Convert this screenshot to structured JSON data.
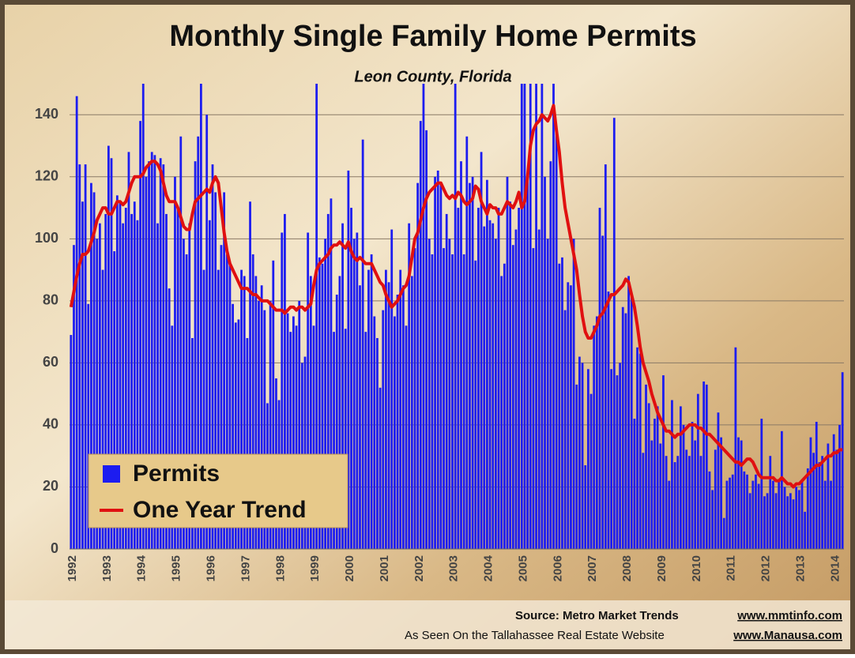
{
  "chart_data": {
    "type": "bar",
    "title": "Monthly Single Family Home Permits",
    "subtitle": "Leon County, Florida",
    "categories": [
      "1992",
      null,
      null,
      null,
      null,
      null,
      null,
      null,
      null,
      null,
      null,
      null,
      "1993",
      null,
      null,
      null,
      null,
      null,
      null,
      null,
      null,
      null,
      null,
      null,
      "1994",
      null,
      null,
      null,
      null,
      null,
      null,
      null,
      null,
      null,
      null,
      null,
      "1995",
      null,
      null,
      null,
      null,
      null,
      null,
      null,
      null,
      null,
      null,
      null,
      "1996",
      null,
      null,
      null,
      null,
      null,
      null,
      null,
      null,
      null,
      null,
      null,
      "1997",
      null,
      null,
      null,
      null,
      null,
      null,
      null,
      null,
      null,
      null,
      null,
      "1998",
      null,
      null,
      null,
      null,
      null,
      null,
      null,
      null,
      null,
      null,
      null,
      "1999",
      null,
      null,
      null,
      null,
      null,
      null,
      null,
      null,
      null,
      null,
      null,
      "2000",
      null,
      null,
      null,
      null,
      null,
      null,
      null,
      null,
      null,
      null,
      null,
      "2001",
      null,
      null,
      null,
      null,
      null,
      null,
      null,
      null,
      null,
      null,
      null,
      "2002",
      null,
      null,
      null,
      null,
      null,
      null,
      null,
      null,
      null,
      null,
      null,
      "2003",
      null,
      null,
      null,
      null,
      null,
      null,
      null,
      null,
      null,
      null,
      null,
      "2004",
      null,
      null,
      null,
      null,
      null,
      null,
      null,
      null,
      null,
      null,
      null,
      "2005",
      null,
      null,
      null,
      null,
      null,
      null,
      null,
      null,
      null,
      null,
      null,
      "2006",
      null,
      null,
      null,
      null,
      null,
      null,
      null,
      null,
      null,
      null,
      null,
      "2007",
      null,
      null,
      null,
      null,
      null,
      null,
      null,
      null,
      null,
      null,
      null,
      "2008",
      null,
      null,
      null,
      null,
      null,
      null,
      null,
      null,
      null,
      null,
      null,
      "2009",
      null,
      null,
      null,
      null,
      null,
      null,
      null,
      null,
      null,
      null,
      null,
      "2010",
      null,
      null,
      null,
      null,
      null,
      null,
      null,
      null,
      null,
      null,
      null,
      "2011",
      null,
      null,
      null,
      null,
      null,
      null,
      null,
      null,
      null,
      null,
      null,
      "2012",
      null,
      null,
      null,
      null,
      null,
      null,
      null,
      null,
      null,
      null,
      null,
      "2013",
      null,
      null,
      null,
      null,
      null,
      null,
      null,
      null,
      null,
      null,
      null,
      "2014",
      null,
      null,
      null
    ],
    "series": [
      {
        "name": "Permits",
        "type": "bar",
        "color": "#1c1cf0",
        "values": [
          69,
          98,
          146,
          124,
          112,
          124,
          79,
          118,
          115,
          100,
          105,
          90,
          108,
          130,
          126,
          96,
          114,
          112,
          105,
          110,
          128,
          108,
          112,
          106,
          138,
          150,
          120,
          125,
          128,
          127,
          105,
          126,
          124,
          108,
          84,
          72,
          120,
          110,
          133,
          100,
          95,
          105,
          68,
          125,
          133,
          150,
          90,
          140,
          106,
          124,
          115,
          90,
          98,
          115,
          95,
          92,
          79,
          73,
          74,
          90,
          88,
          68,
          112,
          95,
          88,
          80,
          85,
          77,
          47,
          80,
          93,
          55,
          48,
          102,
          108,
          76,
          70,
          75,
          72,
          80,
          60,
          62,
          102,
          88,
          72,
          150,
          94,
          92,
          100,
          108,
          113,
          70,
          82,
          88,
          105,
          71,
          122,
          110,
          100,
          102,
          85,
          132,
          70,
          90,
          95,
          75,
          68,
          52,
          77,
          90,
          86,
          103,
          75,
          82,
          90,
          85,
          72,
          105,
          88,
          97,
          118,
          138,
          150,
          135,
          100,
          95,
          120,
          122,
          118,
          97,
          108,
          100,
          95,
          150,
          110,
          125,
          95,
          133,
          118,
          120,
          93,
          110,
          128,
          104,
          119,
          106,
          105,
          100,
          110,
          88,
          92,
          120,
          112,
          98,
          103,
          110,
          150,
          150,
          120,
          150,
          97,
          150,
          103,
          150,
          120,
          100,
          125,
          150,
          134,
          92,
          94,
          77,
          86,
          85,
          100,
          53,
          62,
          60,
          27,
          58,
          50,
          72,
          75,
          110,
          101,
          124,
          83,
          58,
          139,
          56,
          60,
          78,
          76,
          88,
          82,
          42,
          65,
          63,
          31,
          53,
          47,
          35,
          42,
          46,
          34,
          56,
          30,
          22,
          48,
          28,
          30,
          46,
          40,
          32,
          30,
          41,
          35,
          50,
          30,
          54,
          53,
          25,
          19,
          32,
          44,
          36,
          10,
          22,
          23,
          24,
          65,
          36,
          35,
          25,
          24,
          18,
          22,
          24,
          21,
          42,
          17,
          18,
          30,
          22,
          18,
          22,
          38,
          20,
          17,
          18,
          16,
          20,
          19,
          22,
          12,
          26,
          36,
          31,
          41,
          28,
          30,
          22,
          34,
          22,
          37,
          32,
          40,
          57
        ]
      },
      {
        "name": "One Year Trend",
        "type": "line",
        "color": "#e01010",
        "values": [
          78,
          83,
          88,
          92,
          95,
          95,
          96,
          99,
          102,
          106,
          108,
          110,
          110,
          108,
          108,
          110,
          112,
          112,
          111,
          112,
          115,
          118,
          120,
          120,
          120,
          121,
          123,
          124,
          125,
          125,
          124,
          122,
          118,
          114,
          112,
          112,
          112,
          110,
          107,
          104,
          103,
          103,
          108,
          112,
          113,
          114,
          115,
          116,
          115,
          118,
          120,
          118,
          110,
          102,
          96,
          92,
          90,
          88,
          86,
          84,
          84,
          84,
          83,
          82,
          82,
          81,
          80,
          80,
          80,
          79,
          78,
          77,
          77,
          77,
          76,
          77,
          78,
          78,
          77,
          78,
          78,
          77,
          78,
          79,
          85,
          90,
          92,
          93,
          94,
          95,
          97,
          98,
          98,
          99,
          98,
          97,
          99,
          96,
          94,
          93,
          94,
          93,
          92,
          92,
          92,
          90,
          88,
          86,
          85,
          82,
          80,
          78,
          79,
          80,
          82,
          84,
          85,
          88,
          94,
          100,
          102,
          106,
          110,
          113,
          115,
          116,
          117,
          118,
          118,
          116,
          114,
          113,
          114,
          113,
          115,
          114,
          112,
          111,
          112,
          113,
          117,
          116,
          112,
          110,
          108,
          111,
          110,
          110,
          108,
          108,
          110,
          112,
          111,
          110,
          112,
          115,
          110,
          112,
          120,
          130,
          135,
          137,
          138,
          140,
          139,
          138,
          140,
          143,
          135,
          128,
          118,
          110,
          105,
          100,
          95,
          90,
          82,
          75,
          70,
          68,
          68,
          70,
          72,
          75,
          76,
          78,
          80,
          82,
          82,
          83,
          84,
          85,
          87,
          86,
          82,
          78,
          72,
          65,
          60,
          57,
          54,
          50,
          47,
          44,
          42,
          40,
          38,
          38,
          37,
          36,
          37,
          37,
          38,
          39,
          40,
          40,
          40,
          39,
          39,
          38,
          37,
          37,
          36,
          35,
          34,
          33,
          32,
          31,
          30,
          29,
          28,
          28,
          27,
          28,
          29,
          29,
          28,
          26,
          24,
          23,
          23,
          23,
          23,
          23,
          22,
          22,
          23,
          22,
          21,
          21,
          20,
          21,
          21,
          22,
          23,
          24,
          25,
          26,
          27,
          27,
          28,
          29,
          30,
          30,
          31,
          31,
          32,
          32
        ]
      }
    ],
    "ylim": [
      0,
      150
    ],
    "yticks": [
      0,
      20,
      40,
      60,
      80,
      100,
      120,
      140
    ],
    "grid": true,
    "legend": "bottom-left",
    "source": "Source: Metro Market Trends",
    "source_url": "www.mmtinfo.com",
    "credit": "As Seen On the Tallahassee Real Estate Website",
    "credit_url": "www.Manausa.com"
  }
}
